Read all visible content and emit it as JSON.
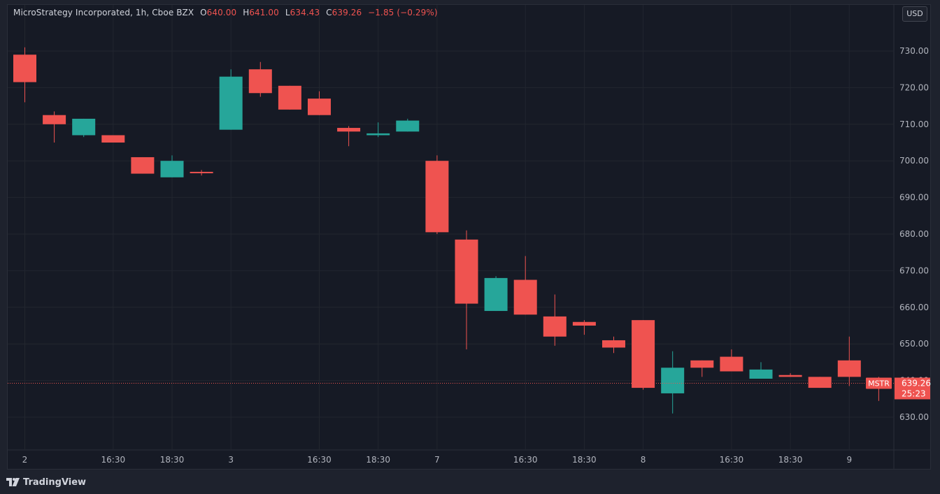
{
  "legend": {
    "symbol": "MicroStrategy Incorporated, 1h, Cboe BZX",
    "open_label": "O",
    "open": "640.00",
    "high_label": "H",
    "high": "641.00",
    "low_label": "L",
    "low": "634.43",
    "close_label": "C",
    "close": "639.26",
    "change": "−1.85 (−0.29%)"
  },
  "currency": "USD",
  "branding": "TradingView",
  "price_tag": {
    "symbol": "MSTR",
    "price": "639.26",
    "countdown": "25:23"
  },
  "colors": {
    "up": "#26a69a",
    "down": "#ef5350",
    "background": "#161a25",
    "grid": "#22262f",
    "text": "#b2b5be"
  },
  "chart_data": {
    "type": "candlestick",
    "y_ticks": [
      630,
      640,
      650,
      660,
      670,
      680,
      690,
      700,
      710,
      720,
      730
    ],
    "y_tick_labels": [
      "630.00",
      "640.00",
      "650.00",
      "660.00",
      "670.00",
      "680.00",
      "690.00",
      "700.00",
      "710.00",
      "720.00",
      "730.00"
    ],
    "ylim": [
      619,
      740
    ],
    "x_labels": [
      "2",
      "16:30",
      "18:30",
      "3",
      "16:30",
      "18:30",
      "7",
      "16:30",
      "18:30",
      "8",
      "16:30",
      "18:30",
      "9"
    ],
    "x_label_bar_positions": [
      0,
      3,
      5,
      7,
      10,
      12,
      14,
      17,
      19,
      21,
      24,
      26,
      28
    ],
    "last_price_line": 639.26,
    "candles": [
      {
        "o": 729.0,
        "h": 731.0,
        "l": 716.0,
        "c": 721.5
      },
      {
        "o": 712.5,
        "h": 713.5,
        "l": 705.0,
        "c": 710.0
      },
      {
        "o": 707.0,
        "h": 711.5,
        "l": 706.5,
        "c": 711.5
      },
      {
        "o": 707.0,
        "h": 707.0,
        "l": 705.0,
        "c": 705.0
      },
      {
        "o": 701.0,
        "h": 701.0,
        "l": 696.5,
        "c": 696.5
      },
      {
        "o": 695.5,
        "h": 701.5,
        "l": 695.5,
        "c": 700.0
      },
      {
        "o": 697.0,
        "h": 697.5,
        "l": 696.0,
        "c": 696.8
      },
      {
        "o": 708.5,
        "h": 725.0,
        "l": 708.5,
        "c": 723.0
      },
      {
        "o": 725.0,
        "h": 727.0,
        "l": 717.5,
        "c": 718.5
      },
      {
        "o": 720.5,
        "h": 720.5,
        "l": 714.0,
        "c": 714.0
      },
      {
        "o": 717.0,
        "h": 719.0,
        "l": 712.5,
        "c": 712.5
      },
      {
        "o": 709.0,
        "h": 709.5,
        "l": 704.0,
        "c": 708.0
      },
      {
        "o": 707.0,
        "h": 710.5,
        "l": 706.5,
        "c": 707.5
      },
      {
        "o": 708.0,
        "h": 711.5,
        "l": 708.0,
        "c": 711.0
      },
      {
        "o": 700.0,
        "h": 701.5,
        "l": 680.0,
        "c": 680.5
      },
      {
        "o": 678.5,
        "h": 681.0,
        "l": 648.5,
        "c": 661.0
      },
      {
        "o": 659.0,
        "h": 668.5,
        "l": 659.0,
        "c": 668.0
      },
      {
        "o": 667.5,
        "h": 674.0,
        "l": 658.0,
        "c": 658.0
      },
      {
        "o": 657.5,
        "h": 663.5,
        "l": 649.5,
        "c": 652.0
      },
      {
        "o": 656.0,
        "h": 656.5,
        "l": 652.5,
        "c": 655.0
      },
      {
        "o": 651.0,
        "h": 652.0,
        "l": 647.5,
        "c": 649.0
      },
      {
        "o": 656.5,
        "h": 656.5,
        "l": 637.5,
        "c": 638.0
      },
      {
        "o": 636.5,
        "h": 648.0,
        "l": 631.0,
        "c": 643.5
      },
      {
        "o": 645.5,
        "h": 645.5,
        "l": 641.0,
        "c": 643.5
      },
      {
        "o": 646.5,
        "h": 648.5,
        "l": 642.5,
        "c": 642.5
      },
      {
        "o": 640.5,
        "h": 645.0,
        "l": 640.5,
        "c": 643.0
      },
      {
        "o": 641.5,
        "h": 642.0,
        "l": 641.0,
        "c": 641.0
      },
      {
        "o": 641.0,
        "h": 641.0,
        "l": 638.0,
        "c": 638.0
      },
      {
        "o": 645.5,
        "h": 652.0,
        "l": 638.5,
        "c": 641.0
      },
      {
        "o": 640.0,
        "h": 641.0,
        "l": 634.43,
        "c": 639.26
      }
    ]
  }
}
